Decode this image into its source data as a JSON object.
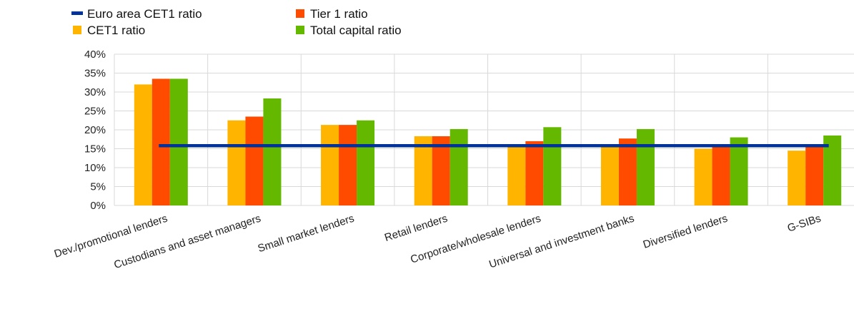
{
  "chart_data": {
    "type": "bar",
    "categories": [
      "Dev./promotional lenders",
      "Custodians and asset managers",
      "Small market lenders",
      "Retail lenders",
      "Corporate/wholesale lenders",
      "Universal and investment banks",
      "Diversified lenders",
      "G-SIBs"
    ],
    "series": [
      {
        "name": "CET1 ratio",
        "color": "#FFB400",
        "values": [
          0.32,
          0.225,
          0.213,
          0.183,
          0.155,
          0.155,
          0.15,
          0.145
        ]
      },
      {
        "name": "Tier 1 ratio",
        "color": "#FF4B00",
        "values": [
          0.335,
          0.235,
          0.213,
          0.183,
          0.17,
          0.177,
          0.155,
          0.16
        ]
      },
      {
        "name": "Total capital ratio",
        "color": "#65B800",
        "values": [
          0.335,
          0.283,
          0.225,
          0.202,
          0.207,
          0.202,
          0.18,
          0.185
        ]
      }
    ],
    "reference_line": {
      "name": "Euro area CET1 ratio",
      "color": "#003299",
      "value": 0.158
    },
    "y_ticks": [
      "0%",
      "5%",
      "10%",
      "15%",
      "20%",
      "25%",
      "30%",
      "35%",
      "40%"
    ],
    "ylim": [
      0,
      0.4
    ],
    "grid": true,
    "legend_position": "top-left",
    "title": "",
    "xlabel": "",
    "ylabel": ""
  }
}
